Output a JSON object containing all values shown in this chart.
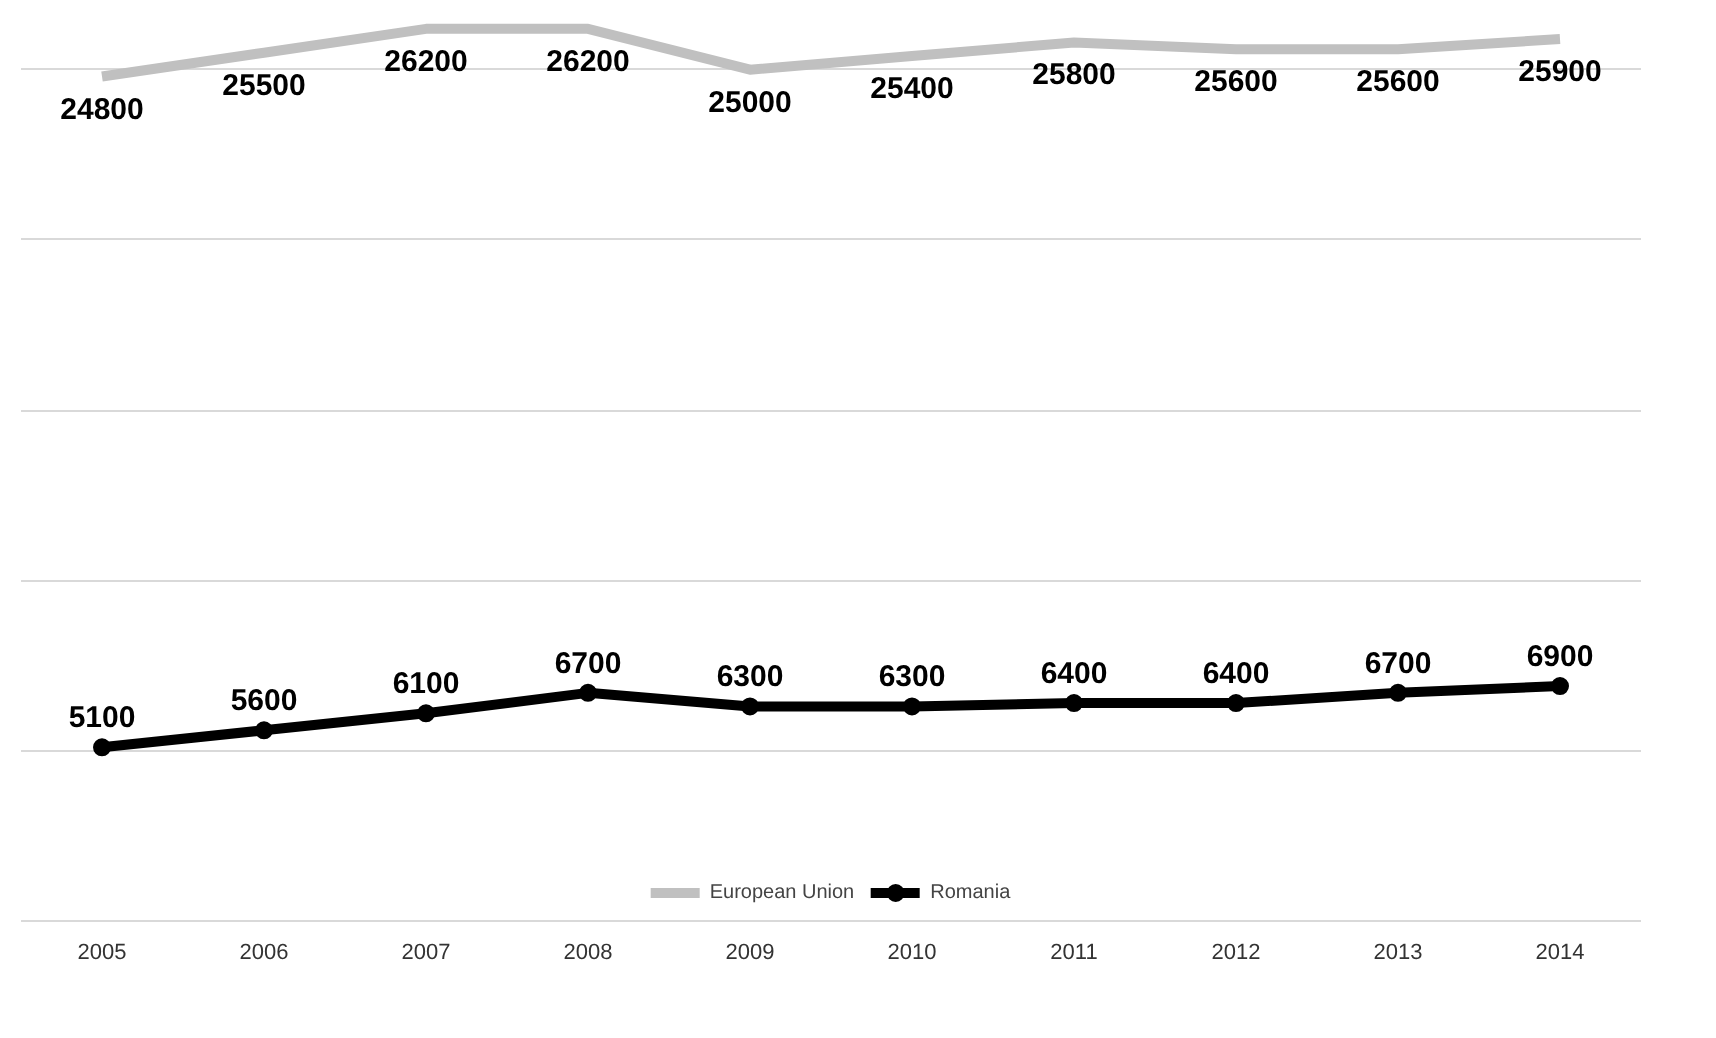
{
  "chart_data": {
    "type": "line",
    "categories": [
      "2005",
      "2006",
      "2007",
      "2008",
      "2009",
      "2010",
      "2011",
      "2012",
      "2013",
      "2014"
    ],
    "series": [
      {
        "name": "European Union",
        "color": "#c0c0c0",
        "marker": "none",
        "values": [
          24800,
          25500,
          26200,
          26200,
          25000,
          25400,
          25800,
          25600,
          25600,
          25900
        ]
      },
      {
        "name": "Romania",
        "color": "#000000",
        "marker": "circle",
        "values": [
          5100,
          5600,
          6100,
          6700,
          6300,
          6300,
          6400,
          6400,
          6700,
          6900
        ]
      }
    ],
    "yticks": [
      {
        "value": 0,
        "label": null
      },
      {
        "value": 5000,
        "label": null
      },
      {
        "value": 10000,
        "label": null
      },
      {
        "value": 15000,
        "label": null
      },
      {
        "value": 20000,
        "label": null
      },
      {
        "value": 25000,
        "label": null
      }
    ],
    "tick_labels": "x",
    "grid": "y",
    "legend": "bottom",
    "data_labels": true,
    "line_style": "solid"
  }
}
